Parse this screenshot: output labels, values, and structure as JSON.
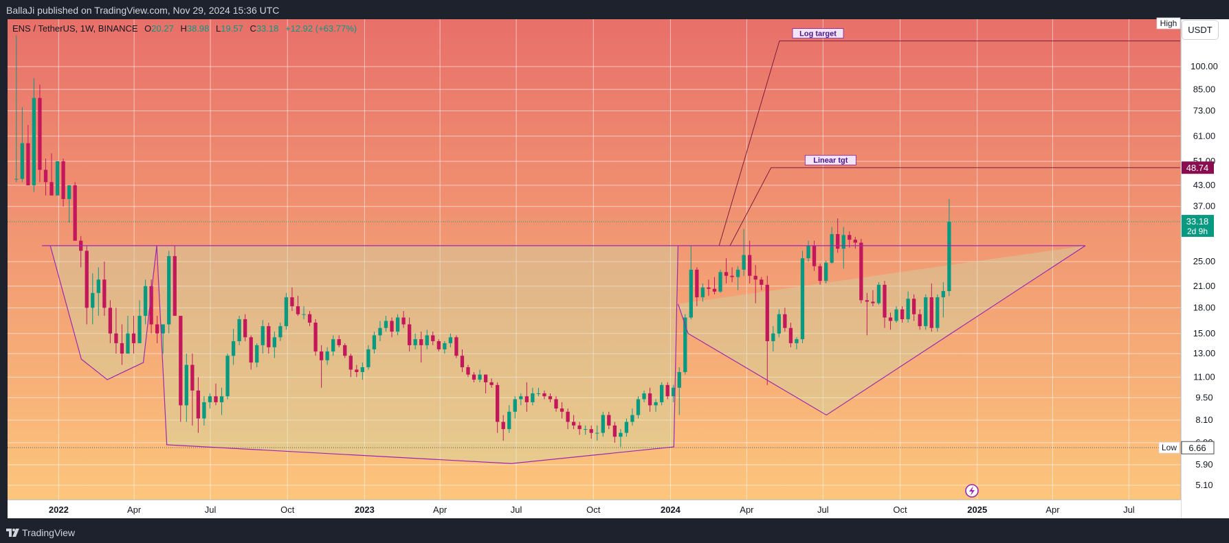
{
  "header": {
    "published": "BallaJi published on TradingView.com, Nov 29, 2024 15:36 UTC"
  },
  "footer": {
    "brand": "TradingView"
  },
  "currency_button": "USDT",
  "legend": {
    "symbol": "ENS / TetherUS, 1W, BINANCE",
    "o_label": "O",
    "o": "20.27",
    "h_label": "H",
    "h": "38.98",
    "l_label": "L",
    "l": "19.57",
    "c_label": "C",
    "c": "33.18",
    "change": "+12.92 (+63.77%)"
  },
  "colors": {
    "up": "#089981",
    "down": "#c2185b",
    "pattern_line": "#9c27b0",
    "bg_top": "#e8706a",
    "bg_bottom": "#fdc97d",
    "axis_bg": "#ffffff",
    "frame": "#1e222d"
  },
  "icons": {
    "footer_logo": "tradingview-logo-icon",
    "lightning": "lightning-icon"
  },
  "chart_data": {
    "type": "candlestick",
    "title": "ENS / TetherUS, 1W, BINANCE",
    "scale": "log",
    "ylim": [
      4.6,
      140
    ],
    "y_ticks": [
      "100.00",
      "85.00",
      "73.00",
      "61.00",
      "51.00",
      "43.00",
      "37.00",
      "25.00",
      "21.00",
      "18.00",
      "15.00",
      "13.00",
      "11.00",
      "9.50",
      "8.10",
      "6.90",
      "5.90",
      "5.10"
    ],
    "x_ticks": [
      "2022",
      "Apr",
      "Jul",
      "Oct",
      "2023",
      "Apr",
      "Jul",
      "Oct",
      "2024",
      "Apr",
      "Jul",
      "Oct",
      "2025",
      "Apr",
      "Jul"
    ],
    "x_bold_ticks": [
      "2022",
      "2023",
      "2024",
      "2025"
    ],
    "xlim": [
      "2021-11-01",
      "2025-09-01"
    ],
    "price_labels": {
      "high": "High",
      "low": "Low",
      "low_value": "6.66",
      "current": "33.18",
      "countdown": "2d 9h",
      "linear_target_value": "48.74"
    },
    "levels": {
      "high": 125,
      "low": 6.66,
      "current": 33.18,
      "neckline": 28.0,
      "linear_target": 48.74,
      "log_target": 120
    },
    "annotations": [
      {
        "text": "Log target",
        "value": 120,
        "date": "2024-06-25"
      },
      {
        "text": "Linear tgt",
        "value": 48.74,
        "date": "2024-07-10"
      }
    ],
    "pattern_points": {
      "left_shoulder": [
        [
          "2021-12-22",
          28
        ],
        [
          "2022-01-28",
          12.5
        ],
        [
          "2022-02-28",
          10.8
        ],
        [
          "2022-04-12",
          12.2
        ],
        [
          "2022-04-28",
          28
        ]
      ],
      "head": [
        [
          "2022-04-28",
          28
        ],
        [
          "2022-05-10",
          6.8
        ],
        [
          "2023-06-25",
          5.95
        ],
        [
          "2024-01-05",
          6.7
        ],
        [
          "2024-01-10",
          28
        ]
      ],
      "right_shoulder": [
        [
          "2024-01-10",
          18.5
        ],
        [
          "2024-01-22",
          15.0
        ],
        [
          "2024-07-05",
          8.4
        ],
        [
          "2025-05-10",
          28
        ]
      ],
      "neckline": [
        [
          "2021-12-12",
          28
        ],
        [
          "2025-05-10",
          28
        ]
      ],
      "log_target_line": [
        [
          "2024-02-28",
          28
        ],
        [
          "2024-05-10",
          120
        ],
        [
          "2025-08-31",
          120
        ]
      ],
      "linear_target_line": [
        [
          "2024-03-12",
          28
        ],
        [
          "2024-04-30",
          48.74
        ],
        [
          "2025-08-31",
          48.74
        ]
      ]
    },
    "candles": [
      [
        "2021-11-08",
        45,
        125,
        44,
        45
      ],
      [
        "2021-11-15",
        45,
        75,
        44,
        58
      ],
      [
        "2021-11-22",
        58,
        66,
        43,
        43
      ],
      [
        "2021-11-29",
        43,
        92,
        41,
        80
      ],
      [
        "2021-12-06",
        80,
        88,
        44,
        48
      ],
      [
        "2021-12-13",
        48,
        52,
        40,
        44
      ],
      [
        "2021-12-20",
        44,
        54,
        41,
        40
      ],
      [
        "2021-12-27",
        40,
        50,
        40,
        51
      ],
      [
        "2022-01-03",
        51,
        52,
        37,
        39
      ],
      [
        "2022-01-10",
        39,
        43,
        33,
        43
      ],
      [
        "2022-01-17",
        43,
        44,
        29,
        29
      ],
      [
        "2022-01-24",
        29,
        30,
        24,
        27
      ],
      [
        "2022-01-31",
        27,
        28,
        16,
        18
      ],
      [
        "2022-02-07",
        18,
        23,
        16,
        20
      ],
      [
        "2022-02-14",
        20,
        24,
        17,
        22
      ],
      [
        "2022-02-21",
        22,
        25,
        17,
        18
      ],
      [
        "2022-02-28",
        18,
        19,
        14,
        15
      ],
      [
        "2022-03-07",
        15,
        18,
        13,
        14
      ],
      [
        "2022-03-14",
        14,
        16,
        12,
        13
      ],
      [
        "2022-03-21",
        13,
        17,
        13,
        15
      ],
      [
        "2022-03-28",
        15,
        17,
        13,
        14
      ],
      [
        "2022-04-04",
        14,
        19,
        14,
        17
      ],
      [
        "2022-04-11",
        17,
        22,
        16,
        21
      ],
      [
        "2022-04-18",
        21,
        22,
        15,
        16
      ],
      [
        "2022-04-25",
        16,
        17,
        14,
        15
      ],
      [
        "2022-05-02",
        15,
        16,
        13,
        16
      ],
      [
        "2022-05-09",
        16,
        27,
        15,
        26
      ],
      [
        "2022-05-16",
        26,
        28,
        17,
        17
      ],
      [
        "2022-05-23",
        17,
        17,
        8,
        9
      ],
      [
        "2022-05-30",
        9,
        13,
        8,
        12
      ],
      [
        "2022-06-06",
        12,
        13,
        7.8,
        10
      ],
      [
        "2022-06-13",
        10,
        11,
        7.4,
        8.2
      ],
      [
        "2022-06-20",
        8.2,
        9.6,
        7.8,
        9.2
      ],
      [
        "2022-06-27",
        9.2,
        9.8,
        8.8,
        9.6
      ],
      [
        "2022-07-04",
        9.6,
        10.5,
        9.0,
        9.2
      ],
      [
        "2022-07-11",
        9.2,
        10.2,
        8.4,
        9.6
      ],
      [
        "2022-07-18",
        9.6,
        13,
        9.4,
        12.8
      ],
      [
        "2022-07-25",
        12.8,
        15.5,
        12,
        14.2
      ],
      [
        "2022-08-01",
        14.2,
        17,
        13.8,
        16.6
      ],
      [
        "2022-08-08",
        16.6,
        17.2,
        14.2,
        14.6
      ],
      [
        "2022-08-15",
        14.6,
        14.8,
        11.6,
        12.2
      ],
      [
        "2022-08-22",
        12.2,
        14,
        11.8,
        13.8
      ],
      [
        "2022-08-29",
        13.8,
        16.5,
        13,
        15.8
      ],
      [
        "2022-09-05",
        15.8,
        16.2,
        13,
        13.6
      ],
      [
        "2022-09-12",
        13.6,
        15.2,
        12.6,
        14.6
      ],
      [
        "2022-09-19",
        14.6,
        16.2,
        14.2,
        15.8
      ],
      [
        "2022-09-26",
        15.8,
        20,
        15.4,
        19.4
      ],
      [
        "2022-10-03",
        19.4,
        20.8,
        17.6,
        18.2
      ],
      [
        "2022-10-10",
        18.2,
        19.6,
        17,
        17.2
      ],
      [
        "2022-10-17",
        17.2,
        18.2,
        16.6,
        17.2
      ],
      [
        "2022-10-24",
        17.2,
        17.6,
        15.8,
        16.2
      ],
      [
        "2022-10-31",
        16.2,
        16.6,
        12.8,
        13.2
      ],
      [
        "2022-11-07",
        13.2,
        13.8,
        10.2,
        12.4
      ],
      [
        "2022-11-14",
        12.4,
        13.6,
        12,
        13.2
      ],
      [
        "2022-11-21",
        13.2,
        14.8,
        12.8,
        14.4
      ],
      [
        "2022-11-28",
        14.4,
        14.8,
        13.6,
        13.8
      ],
      [
        "2022-12-05",
        13.8,
        14,
        12.6,
        12.8
      ],
      [
        "2022-12-12",
        12.8,
        13,
        11,
        11.6
      ],
      [
        "2022-12-19",
        11.6,
        12,
        11,
        11.4
      ],
      [
        "2022-12-26",
        11.4,
        12.2,
        10.8,
        11.8
      ],
      [
        "2023-01-02",
        11.8,
        13.8,
        11.6,
        13.4
      ],
      [
        "2023-01-09",
        13.4,
        15.2,
        13,
        14.8
      ],
      [
        "2023-01-16",
        14.8,
        16.4,
        14.2,
        15.6
      ],
      [
        "2023-01-23",
        15.6,
        17,
        15.2,
        16.4
      ],
      [
        "2023-01-30",
        16.4,
        16.8,
        14.6,
        15.2
      ],
      [
        "2023-02-06",
        15.2,
        17.2,
        14.8,
        16.8
      ],
      [
        "2023-02-13",
        16.8,
        17.6,
        15.6,
        16
      ],
      [
        "2023-02-20",
        16,
        16.8,
        13.2,
        13.8
      ],
      [
        "2023-02-27",
        13.8,
        15,
        13.4,
        14.4
      ],
      [
        "2023-03-06",
        14.4,
        15.2,
        12.2,
        13.8
      ],
      [
        "2023-03-13",
        13.8,
        15.4,
        13.4,
        14.8
      ],
      [
        "2023-03-20",
        14.8,
        15.2,
        13.8,
        14.2
      ],
      [
        "2023-03-27",
        14.2,
        14.4,
        13.2,
        13.4
      ],
      [
        "2023-04-03",
        13.4,
        14.2,
        13,
        14
      ],
      [
        "2023-04-10",
        14,
        15,
        13.6,
        14.6
      ],
      [
        "2023-04-17",
        14.6,
        14.8,
        12.6,
        12.8
      ],
      [
        "2023-04-24",
        12.8,
        13.4,
        11.4,
        11.8
      ],
      [
        "2023-05-01",
        11.8,
        12,
        11,
        11.2
      ],
      [
        "2023-05-08",
        11.2,
        11.4,
        10.6,
        10.8
      ],
      [
        "2023-05-15",
        10.8,
        11.6,
        10.6,
        11.2
      ],
      [
        "2023-05-22",
        11.2,
        11.2,
        9.8,
        10.6
      ],
      [
        "2023-05-29",
        10.6,
        10.9,
        10.2,
        10.4
      ],
      [
        "2023-06-05",
        10.4,
        10.6,
        7.4,
        8.0
      ],
      [
        "2023-06-12",
        8,
        8.4,
        7.0,
        7.6
      ],
      [
        "2023-06-19",
        7.6,
        9.0,
        7.4,
        8.6
      ],
      [
        "2023-06-26",
        8.6,
        9.6,
        8.2,
        9.4
      ],
      [
        "2023-07-03",
        9.4,
        9.8,
        9,
        9.6
      ],
      [
        "2023-07-10",
        9.6,
        10.6,
        8.6,
        9.2
      ],
      [
        "2023-07-17",
        9.2,
        10.2,
        9,
        9.8
      ],
      [
        "2023-07-24",
        9.8,
        10.2,
        9.6,
        9.8
      ],
      [
        "2023-07-31",
        9.8,
        10,
        9.4,
        9.6
      ],
      [
        "2023-08-07",
        9.6,
        9.8,
        9.2,
        9.4
      ],
      [
        "2023-08-14",
        9.4,
        9.6,
        8.6,
        8.8
      ],
      [
        "2023-08-21",
        8.8,
        9.2,
        8.2,
        8.6
      ],
      [
        "2023-08-28",
        8.6,
        8.8,
        7.6,
        8.0
      ],
      [
        "2023-09-04",
        8,
        8.4,
        7.6,
        7.8
      ],
      [
        "2023-09-11",
        7.8,
        8.0,
        7.3,
        7.6
      ],
      [
        "2023-09-18",
        7.6,
        7.8,
        7.3,
        7.6
      ],
      [
        "2023-09-25",
        7.6,
        7.8,
        7.1,
        7.4
      ],
      [
        "2023-10-02",
        7.4,
        7.8,
        7,
        7.4
      ],
      [
        "2023-10-09",
        7.4,
        8.6,
        7.2,
        8.4
      ],
      [
        "2023-10-16",
        8.4,
        8.6,
        7.6,
        7.8
      ],
      [
        "2023-10-23",
        7.8,
        8.0,
        6.9,
        7.2
      ],
      [
        "2023-10-30",
        7.2,
        7.6,
        6.7,
        7.4
      ],
      [
        "2023-11-06",
        7.4,
        8.2,
        7.2,
        8.0
      ],
      [
        "2023-11-13",
        8,
        8.8,
        7.8,
        8.4
      ],
      [
        "2023-11-20",
        8.4,
        9.6,
        8.2,
        9.4
      ],
      [
        "2023-11-27",
        9.4,
        10,
        9.2,
        9.8
      ],
      [
        "2023-12-04",
        9.8,
        10.2,
        8.6,
        9.0
      ],
      [
        "2023-12-11",
        9,
        9.4,
        8.6,
        9.2
      ],
      [
        "2023-12-18",
        9.2,
        10.6,
        9,
        10.4
      ],
      [
        "2023-12-25",
        10.4,
        10.6,
        9.4,
        9.6
      ],
      [
        "2024-01-01",
        9.6,
        10.4,
        9.2,
        10.2
      ],
      [
        "2024-01-08",
        10.2,
        11.8,
        8.4,
        11.4
      ],
      [
        "2024-01-15",
        11.4,
        17.2,
        11.2,
        16.8
      ],
      [
        "2024-01-22",
        16.8,
        28,
        16.6,
        23.6
      ],
      [
        "2024-01-29",
        23.6,
        24,
        18.2,
        19.4
      ],
      [
        "2024-02-05",
        19.4,
        21.4,
        18.8,
        20.8
      ],
      [
        "2024-02-12",
        20.8,
        22,
        19.6,
        20.6
      ],
      [
        "2024-02-19",
        20.6,
        22.4,
        19.8,
        20.2
      ],
      [
        "2024-02-26",
        20.2,
        23.6,
        20,
        23.2
      ],
      [
        "2024-03-04",
        23.2,
        25.6,
        21.4,
        22.6
      ],
      [
        "2024-03-11",
        22.6,
        24,
        21.6,
        22.4
      ],
      [
        "2024-03-18",
        22.4,
        24.2,
        20.4,
        23.6
      ],
      [
        "2024-03-25",
        23.6,
        31.5,
        22.6,
        26.2
      ],
      [
        "2024-04-01",
        26.2,
        29,
        21.4,
        22.6
      ],
      [
        "2024-04-08",
        22.6,
        24.4,
        18.6,
        22
      ],
      [
        "2024-04-15",
        22,
        22.4,
        20.4,
        21.2
      ],
      [
        "2024-04-22",
        21.2,
        22.6,
        10.4,
        14.2
      ],
      [
        "2024-04-29",
        14.2,
        15.8,
        13.2,
        15
      ],
      [
        "2024-05-06",
        15,
        17.8,
        14.6,
        17.2
      ],
      [
        "2024-05-13",
        17.2,
        18,
        15.2,
        15.6
      ],
      [
        "2024-05-20",
        15.6,
        16.2,
        13.6,
        14
      ],
      [
        "2024-05-27",
        14,
        14.6,
        13.4,
        14.4
      ],
      [
        "2024-06-03",
        14.4,
        27,
        14,
        25.6
      ],
      [
        "2024-06-10",
        25.6,
        29,
        25,
        28
      ],
      [
        "2024-06-17",
        28,
        29,
        23.4,
        24.2
      ],
      [
        "2024-06-24",
        24.2,
        24.6,
        21.2,
        21.8
      ],
      [
        "2024-07-01",
        21.8,
        25.2,
        21.4,
        24.8
      ],
      [
        "2024-07-08",
        24.8,
        32,
        24.6,
        30.4
      ],
      [
        "2024-07-15",
        30.4,
        34,
        26.6,
        27.4
      ],
      [
        "2024-07-22",
        27.4,
        32,
        23.8,
        30.2
      ],
      [
        "2024-07-29",
        30.2,
        31,
        27.6,
        29.2
      ],
      [
        "2024-08-05",
        29.2,
        29.8,
        27.4,
        28.6
      ],
      [
        "2024-08-12",
        28.6,
        29.4,
        18.6,
        19
      ],
      [
        "2024-08-19",
        19,
        20,
        14.8,
        18.8
      ],
      [
        "2024-08-26",
        18.8,
        20.4,
        18.2,
        18.6
      ],
      [
        "2024-09-02",
        18.6,
        21.6,
        18.4,
        21.2
      ],
      [
        "2024-09-09",
        21.2,
        21.8,
        15.6,
        16.8
      ],
      [
        "2024-09-16",
        16.8,
        17.4,
        15.4,
        16.4
      ],
      [
        "2024-09-23",
        16.4,
        18.2,
        16.2,
        17.8
      ],
      [
        "2024-09-30",
        17.8,
        18.2,
        16.2,
        16.6
      ],
      [
        "2024-10-07",
        16.6,
        20.2,
        16.2,
        19.2
      ],
      [
        "2024-10-14",
        19.2,
        19.8,
        16.4,
        17.2
      ],
      [
        "2024-10-21",
        17.2,
        17.8,
        15.4,
        15.8
      ],
      [
        "2024-10-28",
        15.8,
        19.8,
        15.4,
        19.4
      ],
      [
        "2024-11-04",
        19.4,
        21.4,
        15.2,
        15.6
      ],
      [
        "2024-11-11",
        15.6,
        19.8,
        15.2,
        19.4
      ],
      [
        "2024-11-18",
        19.4,
        21.6,
        16.8,
        20.27
      ],
      [
        "2024-11-25",
        20.27,
        38.98,
        19.57,
        33.18
      ]
    ]
  }
}
